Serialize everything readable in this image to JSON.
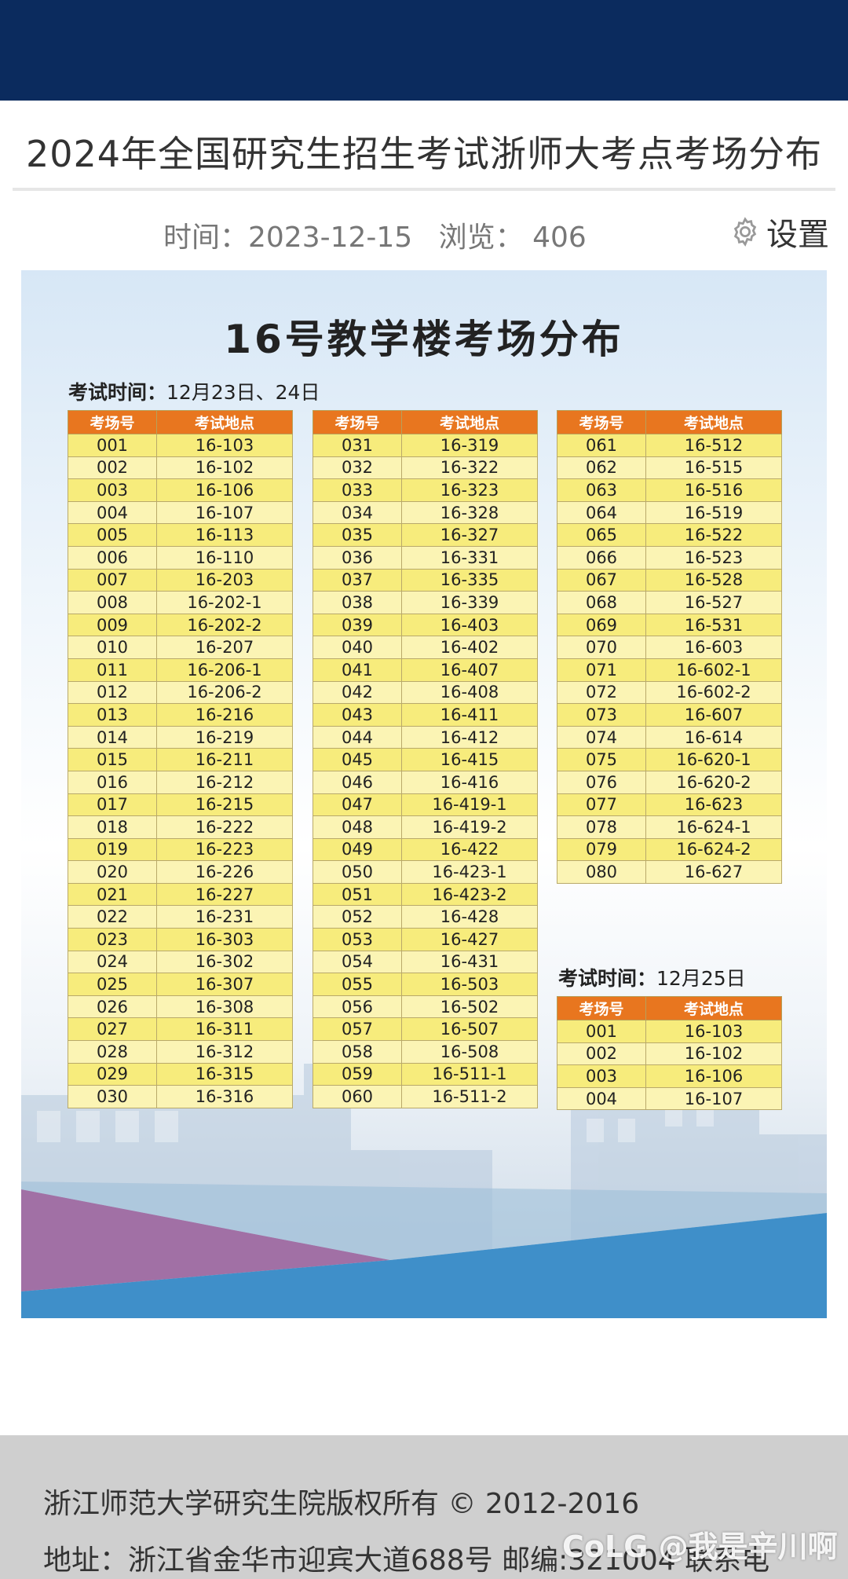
{
  "header": {
    "title": "2024年全国研究生招生考试浙师大考点考场分布"
  },
  "meta": {
    "date": "时间：2023-12-15",
    "views": "浏览： 406",
    "settings_label": "设置"
  },
  "poster": {
    "title": "16号教学楼考场分布",
    "session1": {
      "label": "考试时间：",
      "value": "12月23日、24日"
    },
    "session2": {
      "label": "考试时间：",
      "value": "12月25日"
    },
    "col_headers": [
      "考场号",
      "考试地点"
    ],
    "table1": [
      [
        "001",
        "16-103"
      ],
      [
        "002",
        "16-102"
      ],
      [
        "003",
        "16-106"
      ],
      [
        "004",
        "16-107"
      ],
      [
        "005",
        "16-113"
      ],
      [
        "006",
        "16-110"
      ],
      [
        "007",
        "16-203"
      ],
      [
        "008",
        "16-202-1"
      ],
      [
        "009",
        "16-202-2"
      ],
      [
        "010",
        "16-207"
      ],
      [
        "011",
        "16-206-1"
      ],
      [
        "012",
        "16-206-2"
      ],
      [
        "013",
        "16-216"
      ],
      [
        "014",
        "16-219"
      ],
      [
        "015",
        "16-211"
      ],
      [
        "016",
        "16-212"
      ],
      [
        "017",
        "16-215"
      ],
      [
        "018",
        "16-222"
      ],
      [
        "019",
        "16-223"
      ],
      [
        "020",
        "16-226"
      ],
      [
        "021",
        "16-227"
      ],
      [
        "022",
        "16-231"
      ],
      [
        "023",
        "16-303"
      ],
      [
        "024",
        "16-302"
      ],
      [
        "025",
        "16-307"
      ],
      [
        "026",
        "16-308"
      ],
      [
        "027",
        "16-311"
      ],
      [
        "028",
        "16-312"
      ],
      [
        "029",
        "16-315"
      ],
      [
        "030",
        "16-316"
      ]
    ],
    "table2": [
      [
        "031",
        "16-319"
      ],
      [
        "032",
        "16-322"
      ],
      [
        "033",
        "16-323"
      ],
      [
        "034",
        "16-328"
      ],
      [
        "035",
        "16-327"
      ],
      [
        "036",
        "16-331"
      ],
      [
        "037",
        "16-335"
      ],
      [
        "038",
        "16-339"
      ],
      [
        "039",
        "16-403"
      ],
      [
        "040",
        "16-402"
      ],
      [
        "041",
        "16-407"
      ],
      [
        "042",
        "16-408"
      ],
      [
        "043",
        "16-411"
      ],
      [
        "044",
        "16-412"
      ],
      [
        "045",
        "16-415"
      ],
      [
        "046",
        "16-416"
      ],
      [
        "047",
        "16-419-1"
      ],
      [
        "048",
        "16-419-2"
      ],
      [
        "049",
        "16-422"
      ],
      [
        "050",
        "16-423-1"
      ],
      [
        "051",
        "16-423-2"
      ],
      [
        "052",
        "16-428"
      ],
      [
        "053",
        "16-427"
      ],
      [
        "054",
        "16-431"
      ],
      [
        "055",
        "16-503"
      ],
      [
        "056",
        "16-502"
      ],
      [
        "057",
        "16-507"
      ],
      [
        "058",
        "16-508"
      ],
      [
        "059",
        "16-511-1"
      ],
      [
        "060",
        "16-511-2"
      ]
    ],
    "table3": [
      [
        "061",
        "16-512"
      ],
      [
        "062",
        "16-515"
      ],
      [
        "063",
        "16-516"
      ],
      [
        "064",
        "16-519"
      ],
      [
        "065",
        "16-522"
      ],
      [
        "066",
        "16-523"
      ],
      [
        "067",
        "16-528"
      ],
      [
        "068",
        "16-527"
      ],
      [
        "069",
        "16-531"
      ],
      [
        "070",
        "16-603"
      ],
      [
        "071",
        "16-602-1"
      ],
      [
        "072",
        "16-602-2"
      ],
      [
        "073",
        "16-607"
      ],
      [
        "074",
        "16-614"
      ],
      [
        "075",
        "16-620-1"
      ],
      [
        "076",
        "16-620-2"
      ],
      [
        "077",
        "16-623"
      ],
      [
        "078",
        "16-624-1"
      ],
      [
        "079",
        "16-624-2"
      ],
      [
        "080",
        "16-627"
      ]
    ],
    "table4": [
      [
        "001",
        "16-103"
      ],
      [
        "002",
        "16-102"
      ],
      [
        "003",
        "16-106"
      ],
      [
        "004",
        "16-107"
      ]
    ]
  },
  "footer": {
    "copyright": "浙江师范大学研究生院版权所有 © 2012-2016",
    "address": "地址：浙江省金华市迎宾大道688号    邮编:321004    联系电"
  },
  "watermark": {
    "text": "CoLG @我是辛川啊"
  },
  "colors": {
    "topbar": "#0b2b5e",
    "header_cell": "#e8761f",
    "cell_odd": "#f7ec7c",
    "cell_even": "#fbf4b4"
  }
}
